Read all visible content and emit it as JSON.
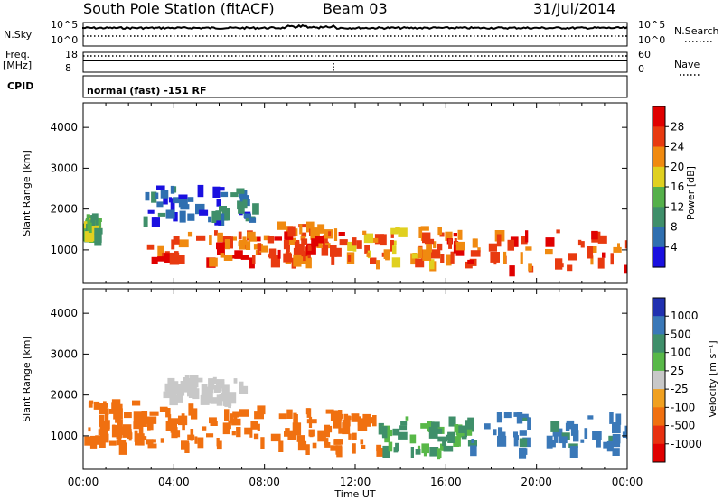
{
  "header": {
    "title": "South Pole Station (fitACF)",
    "beam": "Beam 03",
    "date": "31/Jul/2014"
  },
  "top_panels": {
    "nsky_label": "N.Sky",
    "nsky_top_tick": "10^5",
    "nsky_bottom_tick": "10^0",
    "nsearch_label": "N.Search",
    "freq_label": "Freq.",
    "freq_unit": "[MHz]",
    "freq_top_tick": "18",
    "freq_bottom_tick": "8",
    "nave_label": "Nave",
    "nave_top_tick": "60",
    "nave_bottom_tick": "0",
    "cpid_label": "CPID",
    "cpid_value": "normal (fast) -151 RF"
  },
  "chart_data": [
    {
      "type": "heatmap",
      "panel": "power",
      "ylabel": "Slant Range [km]",
      "xlabel": "",
      "ylim": [
        180,
        4600
      ],
      "yticks": [
        "1000",
        "2000",
        "3000",
        "4000"
      ],
      "colorbar_label": "Power [dB]",
      "colorbar_ticks": [
        "4",
        "8",
        "12",
        "16",
        "20",
        "24",
        "28"
      ],
      "colorbar_colors": [
        "#1a10e0",
        "#2f6fb0",
        "#3f8f6a",
        "#55b04a",
        "#e0d020",
        "#f08a10",
        "#e83a10",
        "#e00000"
      ],
      "regions": [
        {
          "t0": 0.0,
          "t1": 0.5,
          "r0": 1400,
          "r1": 1900,
          "level": 3
        },
        {
          "t0": 2.5,
          "t1": 7.5,
          "r0": 1800,
          "r1": 2600,
          "level": 1
        },
        {
          "t0": 2.8,
          "t1": 8.5,
          "r0": 800,
          "r1": 1500,
          "level": 6
        },
        {
          "t0": 8.5,
          "t1": 11.5,
          "r0": 800,
          "r1": 1700,
          "level": 6
        },
        {
          "t0": 11.5,
          "t1": 16.0,
          "r0": 700,
          "r1": 1600,
          "level": 5
        },
        {
          "t0": 16.0,
          "t1": 24.0,
          "r0": 600,
          "r1": 1500,
          "level": 6
        }
      ]
    },
    {
      "type": "heatmap",
      "panel": "velocity",
      "ylabel": "Slant Range [km]",
      "xlabel": "Time UT",
      "ylim": [
        180,
        4600
      ],
      "yticks": [
        "1000",
        "2000",
        "3000",
        "4000"
      ],
      "xticks": [
        "00:00",
        "04:00",
        "08:00",
        "12:00",
        "16:00",
        "20:00",
        "00:00"
      ],
      "colorbar_label": "Velocity [m s⁻¹]",
      "colorbar_ticks": [
        "1000",
        "500",
        "100",
        "25",
        "-25",
        "-100",
        "-500",
        "-1000"
      ],
      "colorbar_colors": [
        "#2030b0",
        "#3a78b8",
        "#3f8f6a",
        "#58b848",
        "#c8c8c8",
        "#f0a020",
        "#f07010",
        "#e83010",
        "#e00000"
      ],
      "regions": [
        {
          "t0": 0.0,
          "t1": 2.5,
          "r0": 800,
          "r1": 1900,
          "value": -300
        },
        {
          "t0": 2.5,
          "t1": 8.5,
          "r0": 800,
          "r1": 1800,
          "value": -300
        },
        {
          "t0": 3.5,
          "t1": 7.0,
          "r0": 1900,
          "r1": 2500,
          "value": 0
        },
        {
          "t0": 8.5,
          "t1": 13.0,
          "r0": 700,
          "r1": 1700,
          "value": -200
        },
        {
          "t0": 13.0,
          "t1": 17.0,
          "r0": 600,
          "r1": 1500,
          "value": 100
        },
        {
          "t0": 17.0,
          "t1": 24.0,
          "r0": 700,
          "r1": 1600,
          "value": 700
        }
      ]
    }
  ]
}
